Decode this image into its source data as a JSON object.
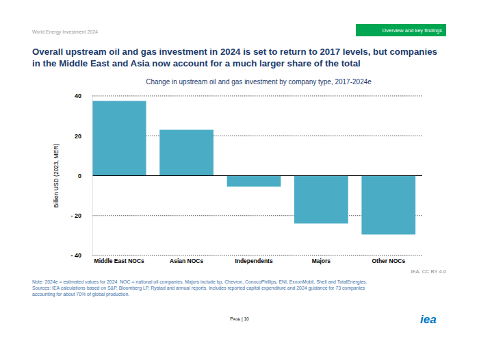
{
  "page": {
    "header": "World Energy Investment 2024",
    "section": "Overview and key findings",
    "note": [
      "Note: 2024e = estimated values for 2024. NOC = national oil companies. Majors include bp, Chevron, ConocoPhillips, ENI, ExxonMobil, Shell and TotalEnergies.",
      "Sources: IEA calculations based on S&P, Bloomberg LP, Rystad and annual reports. Includes reported capital expenditure and 2024 guidance for 73 companies",
      "accounting for about 70% of global production."
    ],
    "credit": "IEA. CC BY 4.0",
    "page_number": "Page | 10",
    "logo": "iea"
  },
  "chart_data": {
    "type": "bar",
    "title": [
      "Overall upstream oil and gas investment in 2024 is set to return to 2017 levels, but companies",
      "in the Middle East and Asia now account for a much larger share of the total"
    ],
    "subtitle": "Change in upstream oil and gas investment by company type, 2017-2024e",
    "y_label": "Billion USD (2023, MER)",
    "categories": [
      "Middle East NOCs",
      "Asian NOCs",
      "Independents",
      "Majors",
      "Other NOCs"
    ],
    "values": [
      37.5,
      23,
      -5.5,
      -24,
      -29.5
    ],
    "color": "#4bacc6",
    "ylim": [
      -40,
      40
    ],
    "yticks": [
      {
        "value": -40,
        "label": "- 40"
      },
      {
        "value": -20,
        "label": "- 20"
      },
      0,
      20,
      40
    ],
    "grid": true
  }
}
